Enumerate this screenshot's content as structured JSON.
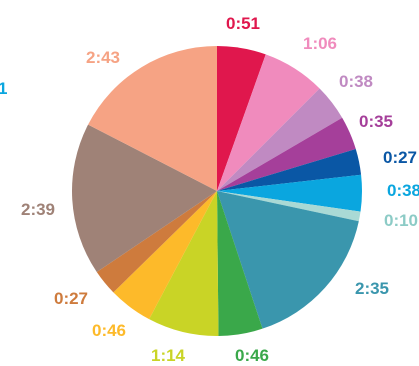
{
  "chart_data": {
    "type": "pie",
    "title": "",
    "legend": "none",
    "slices": [
      {
        "label": "0:51",
        "value": 51,
        "color": "#e0174d"
      },
      {
        "label": "1:06",
        "value": 66,
        "color": "#f08bbd"
      },
      {
        "label": "0:38",
        "value": 38,
        "color": "#c08ac2"
      },
      {
        "label": "0:35",
        "value": 35,
        "color": "#a53f9a"
      },
      {
        "label": "0:27",
        "value": 27,
        "color": "#0a57a5"
      },
      {
        "label": "0:38",
        "value": 38,
        "color": "#0aa6df"
      },
      {
        "label": "0:10",
        "value": 10,
        "color": "#a9d9d5"
      },
      {
        "label": "2:35",
        "value": 155,
        "color": "#3a96ad"
      },
      {
        "label": "0:46",
        "value": 46,
        "color": "#3aa84a"
      },
      {
        "label": "1:14",
        "value": 74,
        "color": "#c9d426"
      },
      {
        "label": "0:46",
        "value": 46,
        "color": "#fdba2a"
      },
      {
        "label": "0:27",
        "value": 27,
        "color": "#ce7b3d"
      },
      {
        "label": "2:39",
        "value": 159,
        "color": "#9f8277"
      },
      {
        "label": "2:43",
        "value": 163,
        "color": "#f6a384"
      }
    ],
    "partial_label": "1"
  }
}
